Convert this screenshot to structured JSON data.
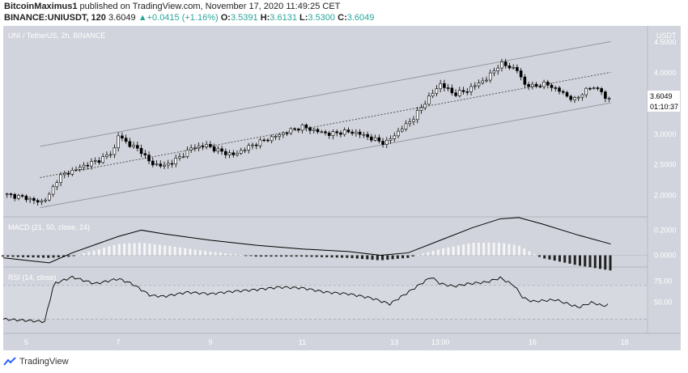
{
  "header": {
    "publisher": "BitcoinMaximus1",
    "published_text": "published on TradingView.com, November 17, 2020 11:49:25 CET",
    "symbol": "BINANCE:UNIUSDT, 120",
    "last": "3.6049",
    "change": "+0.0415 (+1.16%)",
    "o_label": "O:",
    "o": "3.5391",
    "h_label": "H:",
    "h": "3.6131",
    "l_label": "L:",
    "l": "3.5300",
    "c_label": "C:",
    "c": "3.6049"
  },
  "footer": {
    "brand": "TradingView"
  },
  "colors": {
    "panel_bg": "#d1d4dc",
    "candle_up": "#ffffff",
    "candle_down": "#000000",
    "line": "#000000",
    "channel": "#9598a1"
  },
  "chart_data": [
    {
      "type": "candlestick",
      "title": "UNI / TetherUS, 2h, BINANCE",
      "ylabel": "USDT",
      "ylim": [
        1.65,
        4.7
      ],
      "y_ticks": [
        "4.5000",
        "4.0000",
        "3.5000",
        "3.0000",
        "2.5000",
        "2.0000"
      ],
      "last_price_label": "3.6049",
      "countdown_label": "01:10:37",
      "x_ticks": [
        "5",
        "7",
        "9",
        "11",
        "13",
        "13:00",
        "16",
        "18"
      ],
      "x_range_days": [
        4.5,
        18.5
      ],
      "close_series": [
        [
          4.5,
          2.02
        ],
        [
          5.0,
          1.96
        ],
        [
          5.3,
          1.88
        ],
        [
          5.5,
          2.0
        ],
        [
          5.7,
          2.3
        ],
        [
          6.0,
          2.4
        ],
        [
          6.3,
          2.5
        ],
        [
          6.6,
          2.58
        ],
        [
          6.9,
          2.72
        ],
        [
          7.0,
          2.98
        ],
        [
          7.2,
          2.85
        ],
        [
          7.5,
          2.72
        ],
        [
          7.7,
          2.52
        ],
        [
          8.0,
          2.48
        ],
        [
          8.3,
          2.6
        ],
        [
          8.6,
          2.78
        ],
        [
          8.9,
          2.82
        ],
        [
          9.2,
          2.72
        ],
        [
          9.5,
          2.66
        ],
        [
          9.8,
          2.78
        ],
        [
          10.1,
          2.88
        ],
        [
          10.4,
          2.96
        ],
        [
          10.7,
          3.05
        ],
        [
          11.0,
          3.12
        ],
        [
          11.3,
          3.05
        ],
        [
          11.6,
          3.0
        ],
        [
          11.9,
          3.04
        ],
        [
          12.2,
          3.02
        ],
        [
          12.5,
          2.93
        ],
        [
          12.8,
          2.85
        ],
        [
          13.1,
          3.05
        ],
        [
          13.4,
          3.25
        ],
        [
          13.7,
          3.55
        ],
        [
          14.0,
          3.82
        ],
        [
          14.3,
          3.65
        ],
        [
          14.6,
          3.72
        ],
        [
          14.8,
          3.82
        ],
        [
          15.0,
          3.9
        ],
        [
          15.3,
          4.15
        ],
        [
          15.5,
          4.1
        ],
        [
          15.7,
          4.03
        ],
        [
          15.8,
          3.82
        ],
        [
          16.0,
          3.78
        ],
        [
          16.3,
          3.82
        ],
        [
          16.6,
          3.7
        ],
        [
          16.9,
          3.55
        ],
        [
          17.1,
          3.68
        ],
        [
          17.3,
          3.78
        ],
        [
          17.5,
          3.7
        ],
        [
          17.55,
          3.55
        ],
        [
          17.7,
          3.6049
        ]
      ],
      "regression_channel": {
        "start_day": 4.5,
        "end_day": 18.5,
        "mid": [
          2.18,
          4.12
        ],
        "upper": [
          2.69,
          4.62
        ],
        "lower": [
          1.69,
          3.62
        ]
      }
    },
    {
      "type": "line",
      "title": "MACD (21, 50, close, 24)",
      "ylim": [
        -0.08,
        0.28
      ],
      "y_ticks": [
        "0.2000",
        "0.0000"
      ],
      "macd_series": [
        [
          4.5,
          -0.02
        ],
        [
          5.5,
          -0.06
        ],
        [
          6.0,
          0.02
        ],
        [
          7.0,
          0.15
        ],
        [
          7.5,
          0.2
        ],
        [
          8.0,
          0.17
        ],
        [
          9.0,
          0.12
        ],
        [
          10.0,
          0.08
        ],
        [
          11.0,
          0.05
        ],
        [
          12.0,
          0.03
        ],
        [
          12.7,
          0.0
        ],
        [
          13.3,
          0.02
        ],
        [
          14.0,
          0.12
        ],
        [
          14.7,
          0.22
        ],
        [
          15.3,
          0.29
        ],
        [
          15.7,
          0.3
        ],
        [
          16.2,
          0.25
        ],
        [
          17.0,
          0.16
        ],
        [
          17.7,
          0.09
        ]
      ],
      "histogram_series": [
        [
          4.5,
          -0.01
        ],
        [
          5.5,
          -0.02
        ],
        [
          6.0,
          -0.01
        ],
        [
          7.0,
          0.09
        ],
        [
          7.5,
          0.1
        ],
        [
          8.0,
          0.08
        ],
        [
          9.0,
          0.03
        ],
        [
          10.0,
          -0.01
        ],
        [
          11.0,
          -0.01
        ],
        [
          12.0,
          -0.02
        ],
        [
          12.7,
          -0.04
        ],
        [
          13.3,
          -0.02
        ],
        [
          14.0,
          0.05
        ],
        [
          14.7,
          0.1
        ],
        [
          15.3,
          0.1
        ],
        [
          15.7,
          0.08
        ],
        [
          16.2,
          -0.02
        ],
        [
          17.0,
          -0.08
        ],
        [
          17.7,
          -0.12
        ]
      ]
    },
    {
      "type": "line",
      "title": "RSI (14, close)",
      "ylim": [
        15,
        90
      ],
      "y_ticks": [
        "75.00",
        "50.00"
      ],
      "band_levels": [
        70,
        30
      ],
      "rsi_series": [
        [
          4.5,
          30
        ],
        [
          5.4,
          27
        ],
        [
          5.6,
          72
        ],
        [
          6.0,
          80
        ],
        [
          6.5,
          72
        ],
        [
          7.0,
          78
        ],
        [
          7.3,
          72
        ],
        [
          7.7,
          58
        ],
        [
          8.0,
          57
        ],
        [
          8.5,
          62
        ],
        [
          9.0,
          60
        ],
        [
          9.5,
          63
        ],
        [
          10.0,
          65
        ],
        [
          10.5,
          68
        ],
        [
          11.0,
          67
        ],
        [
          11.5,
          62
        ],
        [
          12.0,
          60
        ],
        [
          12.5,
          55
        ],
        [
          12.9,
          48
        ],
        [
          13.3,
          62
        ],
        [
          13.8,
          80
        ],
        [
          14.0,
          72
        ],
        [
          14.3,
          69
        ],
        [
          14.6,
          72
        ],
        [
          15.0,
          74
        ],
        [
          15.3,
          79
        ],
        [
          15.6,
          70
        ],
        [
          15.8,
          55
        ],
        [
          16.0,
          51
        ],
        [
          16.5,
          53
        ],
        [
          17.0,
          44
        ],
        [
          17.3,
          50
        ],
        [
          17.5,
          46
        ],
        [
          17.7,
          47
        ]
      ]
    }
  ]
}
